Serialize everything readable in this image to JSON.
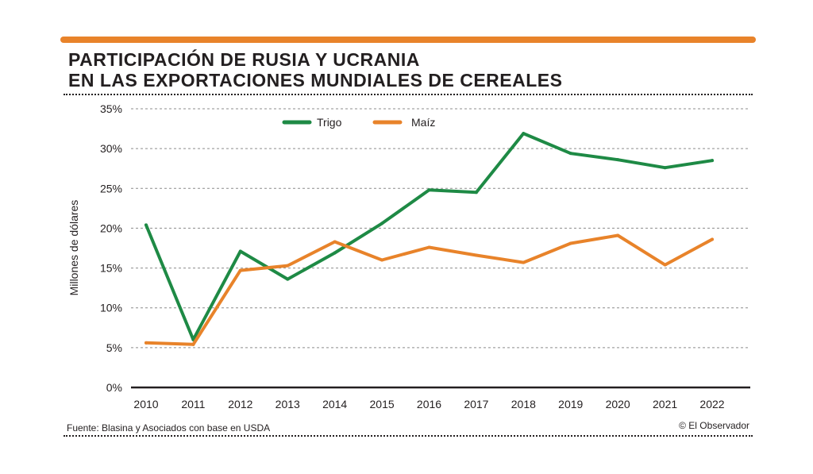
{
  "header": {
    "title_line1": "PARTICIPACIÓN DE RUSIA Y UCRANIA",
    "title_line2": "EN LAS EXPORTACIONES MUNDIALES DE CEREALES"
  },
  "footer": {
    "source": "Fuente: Blasina y Asociados con base en USDA",
    "credit": "© El Observador"
  },
  "colors": {
    "accent": "#e8832a",
    "trigo": "#1e8a45",
    "maiz": "#e8832a",
    "grid": "#8c8c8c",
    "axis": "#231f20"
  },
  "chart_data": {
    "type": "line",
    "title": "PARTICIPACIÓN DE RUSIA Y UCRANIA EN LAS EXPORTACIONES MUNDIALES DE CEREALES",
    "xlabel": "",
    "ylabel": "Millones de dólares",
    "x": [
      2010,
      2011,
      2012,
      2013,
      2014,
      2015,
      2016,
      2017,
      2018,
      2019,
      2020,
      2021,
      2022
    ],
    "ylim": [
      0,
      35
    ],
    "yticks": [
      0,
      5,
      10,
      15,
      20,
      25,
      30,
      35
    ],
    "ytick_labels": [
      "0%",
      "5%",
      "10%",
      "15%",
      "20%",
      "25%",
      "30%",
      "35%"
    ],
    "grid": true,
    "legend_position": "top-center",
    "series": [
      {
        "name": "Trigo",
        "color": "#1e8a45",
        "values": [
          20.4,
          6.0,
          17.1,
          13.6,
          16.9,
          20.6,
          24.8,
          24.5,
          31.9,
          29.4,
          28.6,
          27.6,
          28.5
        ]
      },
      {
        "name": "Maíz",
        "color": "#e8832a",
        "values": [
          5.6,
          5.4,
          14.7,
          15.3,
          18.3,
          16.0,
          17.6,
          16.6,
          15.7,
          18.1,
          19.1,
          15.4,
          18.6
        ]
      }
    ]
  }
}
